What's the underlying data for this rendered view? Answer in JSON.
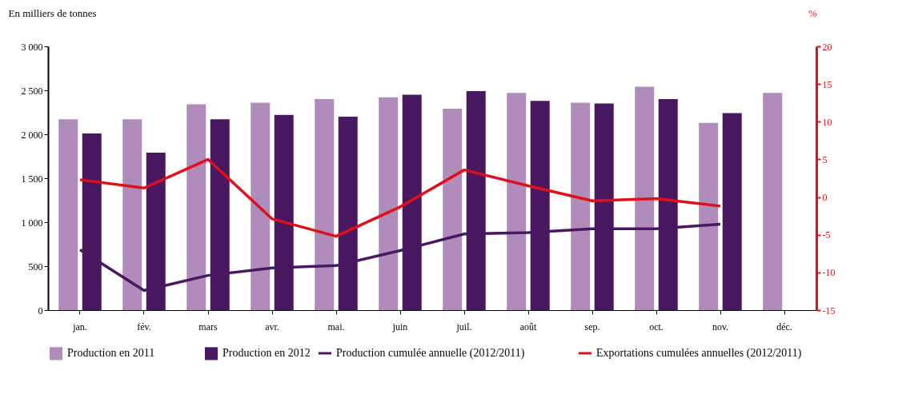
{
  "chart_data": {
    "type": "bar",
    "ylabel": "En milliers de tonnes",
    "y2label": "%",
    "categories": [
      "jan.",
      "fév.",
      "mars",
      "avr.",
      "mai.",
      "juin",
      "juil.",
      "août",
      "sep.",
      "oct.",
      "nov.",
      "déc."
    ],
    "series": [
      {
        "name": "Production en 2011",
        "color": "#b08cbb",
        "values": [
          2170,
          2170,
          2340,
          2360,
          2400,
          2420,
          2290,
          2470,
          2360,
          2540,
          2130,
          2470
        ]
      },
      {
        "name": "Production en 2012",
        "color": "#4a1860",
        "values": [
          2010,
          1790,
          2170,
          2220,
          2200,
          2450,
          2490,
          2380,
          2350,
          2400,
          2240,
          null
        ]
      },
      {
        "name": "Production cumulée annuelle (2012/2011)",
        "type": "line",
        "axis": "y2",
        "color": "#4a1860",
        "values": [
          -7.0,
          -12.4,
          -10.4,
          -9.4,
          -9.1,
          -7.1,
          -4.9,
          -4.7,
          -4.2,
          -4.2,
          -3.6,
          null
        ]
      },
      {
        "name": "Exportations cumulées annuelles (2012/2011)",
        "type": "line",
        "axis": "y2",
        "color": "#e0101a",
        "values": [
          2.3,
          1.2,
          5.0,
          -2.9,
          -5.2,
          -1.3,
          3.6,
          1.5,
          -0.5,
          -0.2,
          -1.2,
          null
        ]
      }
    ],
    "ylim": [
      0,
      3000
    ],
    "yticks": [
      0,
      500,
      {
        "value": 1000,
        "label": "1 000"
      },
      {
        "value": 1500,
        "label": "1 500"
      },
      {
        "value": 2000,
        "label": "2 000"
      },
      {
        "value": 2500,
        "label": "2 500"
      },
      {
        "value": 3000,
        "label": "3 000"
      }
    ],
    "y2lim": [
      -15,
      20
    ],
    "y2ticks": [
      -15,
      -10,
      -5,
      0,
      5,
      10,
      15,
      20
    ],
    "grid": false,
    "legend": "bottom",
    "marker": "none",
    "line_style": "solid"
  }
}
